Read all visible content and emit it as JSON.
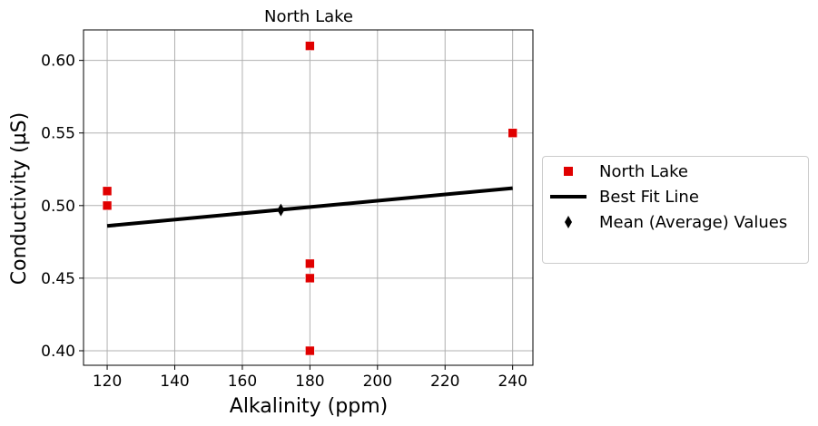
{
  "chart_data": {
    "type": "scatter",
    "title": "North Lake",
    "xlabel": "Alkalinity (ppm)",
    "ylabel": "Conductivity (µS)",
    "xlim": [
      113,
      246
    ],
    "ylim": [
      0.39,
      0.621
    ],
    "xticks": [
      120,
      140,
      160,
      180,
      200,
      220,
      240
    ],
    "yticks": [
      0.4,
      0.45,
      0.5,
      0.55,
      0.6
    ],
    "ytick_labels": [
      "0.40",
      "0.45",
      "0.50",
      "0.55",
      "0.60"
    ],
    "grid": true,
    "legend_position": "right",
    "series": [
      {
        "name": "North Lake",
        "kind": "scatter",
        "marker": "square",
        "color": "#e00000",
        "points": [
          {
            "x": 120,
            "y": 0.51
          },
          {
            "x": 120,
            "y": 0.5
          },
          {
            "x": 180,
            "y": 0.61
          },
          {
            "x": 180,
            "y": 0.46
          },
          {
            "x": 180,
            "y": 0.45
          },
          {
            "x": 180,
            "y": 0.4
          },
          {
            "x": 240,
            "y": 0.55
          }
        ]
      },
      {
        "name": "Best Fit Line",
        "kind": "line",
        "color": "#000000",
        "points": [
          {
            "x": 120,
            "y": 0.486
          },
          {
            "x": 240,
            "y": 0.512
          }
        ]
      },
      {
        "name": "Mean (Average) Values",
        "kind": "scatter",
        "marker": "diamond",
        "color": "#000000",
        "points": [
          {
            "x": 171.4,
            "y": 0.497
          }
        ]
      }
    ]
  }
}
